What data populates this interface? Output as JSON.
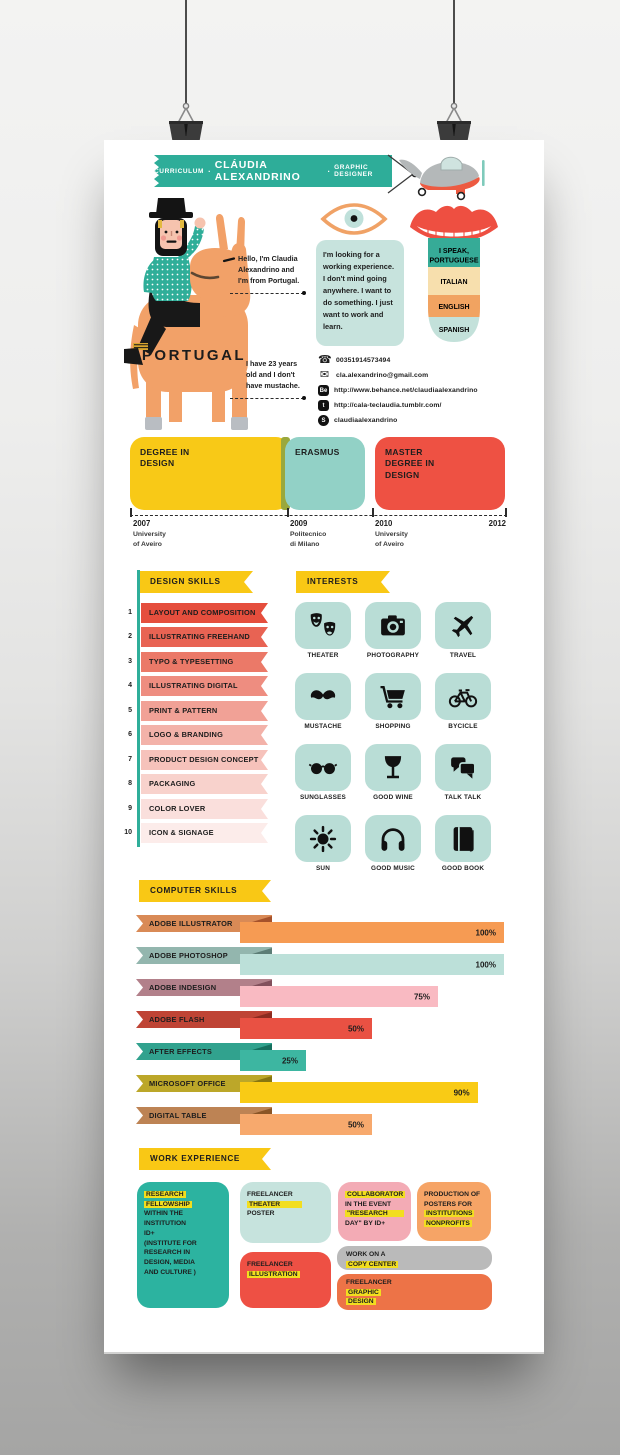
{
  "palette": {
    "wall_top": "#f3f3f2",
    "wall_bottom": "#a5a5a4",
    "poster": "#ffffff",
    "teal": "#2ead99",
    "teal_light": "#c7e3dd",
    "tile_teal": "#b9ddd6",
    "yellow": "#f9c815",
    "highlight_yellow": "#f2de1f",
    "red": "#ee5044",
    "donkey_orange": "#f2a168"
  },
  "banner": {
    "label_left": "CURRICULUM",
    "separator": "·",
    "name": "CLÁUDIA ALEXANDRINO",
    "label_right": "GRAPHIC DESIGNER"
  },
  "intro": {
    "country_label": "PORTUGAL",
    "greeting_note": "Hello, I'm Claudia Alexandrino and I'm from Portugal.",
    "age_note": "I have 23 years old and I don't have mustache.",
    "objective": "I'm looking for a working experience. I don't mind going anywhere. I want to do something. I just want to work and learn."
  },
  "languages": {
    "bands": [
      {
        "lines": [
          "I SPEAK,",
          "PORTUGUESE"
        ],
        "color": "#36ab97"
      },
      {
        "lines": [
          "ITALIAN"
        ],
        "color": "#f7dfad"
      },
      {
        "lines": [
          "ENGLISH"
        ],
        "color": "#f1a361"
      },
      {
        "lines": [
          "SPANISH"
        ],
        "color": "#c3e1da"
      }
    ]
  },
  "contacts": [
    {
      "icon": "phone-icon",
      "glyph": "☎",
      "value": "00351914573494"
    },
    {
      "icon": "email-icon",
      "glyph": "✉",
      "value": "cla.alexandrino@gmail.com"
    },
    {
      "icon": "behance-icon",
      "glyph": "Be",
      "value": "http://www.behance.net/claudiaalexandrino"
    },
    {
      "icon": "tumblr-icon",
      "glyph": "t",
      "value": "http://cala-teclaudia.tumblr.com/"
    },
    {
      "icon": "skype-icon",
      "glyph": "S",
      "value": "claudiaalexandrino"
    }
  ],
  "education_timeline": {
    "blocks": [
      {
        "label": "DEGREE IN DESIGN",
        "color": "#f8c917"
      },
      {
        "label": "ERASMUS",
        "color": "#92d1c6"
      },
      {
        "label": "MASTER DEGREE IN DESIGN",
        "color": "#ee5143"
      }
    ],
    "ticks": [
      {
        "year": "2007",
        "place": "University\nof Aveiro"
      },
      {
        "year": "2009",
        "place": "Politecnico\ndi Milano"
      },
      {
        "year": "2010",
        "place": "University\nof Aveiro"
      },
      {
        "year": "2012",
        "place": ""
      }
    ]
  },
  "design_skills": {
    "title": "DESIGN SKILLS",
    "items": [
      {
        "num": "1",
        "label": "LAYOUT AND COMPOSITION",
        "color": "#e54e3d"
      },
      {
        "num": "2",
        "label": "ILLUSTRATING FREEHAND",
        "color": "#e86353"
      },
      {
        "num": "3",
        "label": "TYPO & TYPESETTING",
        "color": "#eb7968"
      },
      {
        "num": "4",
        "label": "ILLUSTRATING DIGITAL",
        "color": "#ee8d80"
      },
      {
        "num": "5",
        "label": "PRINT & PATTERN",
        "color": "#f1a196"
      },
      {
        "num": "6",
        "label": "LOGO & BRANDING",
        "color": "#f3b2a9"
      },
      {
        "num": "7",
        "label": "PRODUCT DESIGN CONCEPT",
        "color": "#f6c2bb"
      },
      {
        "num": "8",
        "label": "PACKAGING",
        "color": "#f8d2cc"
      },
      {
        "num": "9",
        "label": "COLOR LOVER",
        "color": "#fadfdc"
      },
      {
        "num": "10",
        "label": "ICON & SIGNAGE",
        "color": "#fcecea"
      }
    ]
  },
  "interests": {
    "title": "INTERESTS",
    "items": [
      {
        "label": "THEATER",
        "icon": "theater-masks-icon"
      },
      {
        "label": "PHOTOGRAPHY",
        "icon": "camera-icon"
      },
      {
        "label": "TRAVEL",
        "icon": "airplane-icon"
      },
      {
        "label": "MUSTACHE",
        "icon": "mustache-icon"
      },
      {
        "label": "SHOPPING",
        "icon": "shopping-cart-icon"
      },
      {
        "label": "BYCICLE",
        "icon": "bicycle-icon"
      },
      {
        "label": "SUNGLASSES",
        "icon": "sunglasses-icon"
      },
      {
        "label": "GOOD WINE",
        "icon": "wine-glass-icon"
      },
      {
        "label": "TALK TALK",
        "icon": "speech-bubbles-icon"
      },
      {
        "label": "SUN",
        "icon": "sun-icon"
      },
      {
        "label": "GOOD MUSIC",
        "icon": "headphones-icon"
      },
      {
        "label": "GOOD BOOK",
        "icon": "book-icon"
      }
    ]
  },
  "computer_skills": {
    "title": "COMPUTER SKILLS",
    "rows": [
      {
        "label": "ADOBE ILLUSTRATOR",
        "percent": 100,
        "percent_label": "100%",
        "label_color": "#d98a56",
        "fold_color": "#a6522b",
        "bar_color": "#f69b53"
      },
      {
        "label": "ADOBE PHOTOSHOP",
        "percent": 100,
        "percent_label": "100%",
        "label_color": "#93b6ae",
        "fold_color": "#5c7d76",
        "bar_color": "#bce0d9"
      },
      {
        "label": "ADOBE INDESIGN",
        "percent": 75,
        "percent_label": "75%",
        "label_color": "#b2808a",
        "fold_color": "#82505c",
        "bar_color": "#f9bac2"
      },
      {
        "label": "ADOBE FLASH",
        "percent": 50,
        "percent_label": "50%",
        "label_color": "#bf4435",
        "fold_color": "#8c2b20",
        "bar_color": "#e95143"
      },
      {
        "label": "AFTER EFFECTS",
        "percent": 25,
        "percent_label": "25%",
        "label_color": "#31a28e",
        "fold_color": "#156f5e",
        "bar_color": "#3db6a1"
      },
      {
        "label": "MICROSOFT OFFICE",
        "percent": 90,
        "percent_label": "90%",
        "label_color": "#bca729",
        "fold_color": "#877610",
        "bar_color": "#f9cb15"
      },
      {
        "label": "DIGITAL TABLE",
        "percent": 50,
        "percent_label": "50%",
        "label_color": "#bd8354",
        "fold_color": "#8a5526",
        "bar_color": "#f7a96d"
      }
    ]
  },
  "chart_data": {
    "type": "bar",
    "orientation": "horizontal",
    "title": "COMPUTER SKILLS",
    "categories": [
      "ADOBE ILLUSTRATOR",
      "ADOBE PHOTOSHOP",
      "ADOBE INDESIGN",
      "ADOBE FLASH",
      "AFTER EFFECTS",
      "MICROSOFT OFFICE",
      "DIGITAL TABLE"
    ],
    "values": [
      100,
      100,
      75,
      50,
      25,
      90,
      50
    ],
    "data_labels": [
      "100%",
      "100%",
      "75%",
      "50%",
      "25%",
      "90%",
      "50%"
    ],
    "unit": "%",
    "xlim": [
      0,
      100
    ],
    "grid": false,
    "legend": "none"
  },
  "work_experience": {
    "title": "WORK EXPERIENCE",
    "blocks": [
      {
        "name": "research-fellowship",
        "color": "#2cb3a0",
        "lines": [
          {
            "t": "RESEARCH",
            "hl": true
          },
          {
            "t": "FELLOWSHIP",
            "hl": true
          },
          {
            "t": "WITHIN THE"
          },
          {
            "t": "INSTITUTION"
          },
          {
            "t": "ID+"
          },
          {
            "t": "(INSTITUTE FOR"
          },
          {
            "t": "RESEARCH IN"
          },
          {
            "t": "DESIGN, MEDIA"
          },
          {
            "t": "AND CULTURE )"
          }
        ]
      },
      {
        "name": "freelancer-theater-poster",
        "color": "#c6e3dd",
        "lines": [
          {
            "t": "FREELANCER"
          },
          {
            "t": "THEATER",
            "hl": true,
            "ext": 22
          },
          {
            "t": "POSTER"
          }
        ]
      },
      {
        "name": "freelancer-illustration",
        "color": "#ee5044",
        "lines": [
          {
            "t": "FREELANCER"
          },
          {
            "t": "ILLUSTRATION",
            "hl": true
          }
        ]
      },
      {
        "name": "collaborator-research-day",
        "color": "#f3abb5",
        "lines": [
          {
            "t": "COLLABORATOR",
            "hl": true
          },
          {
            "t": "IN THE EVENT"
          },
          {
            "t": "\"RESEARCH",
            "hl": true,
            "ext": 16
          },
          {
            "t": "DAY\" BY ID+"
          }
        ]
      },
      {
        "name": "production-of-posters",
        "color": "#f6a466",
        "lines": [
          {
            "t": "PRODUCTION OF"
          },
          {
            "t": "POSTERS FOR"
          },
          {
            "t": "INSTITUTIONS",
            "hl": true
          },
          {
            "t": "NONPROFITS",
            "hl": true
          }
        ]
      },
      {
        "name": "work-on-copy-center",
        "color": "#bababa",
        "lines": [
          {
            "t": "WORK ON A"
          },
          {
            "t": "COPY CENTER",
            "hl": true
          }
        ]
      },
      {
        "name": "freelancer-graphic-design",
        "color": "#ed7347",
        "lines": [
          {
            "t": "FREELANCER"
          },
          {
            "t": "GRAPHIC",
            "hl": true
          },
          {
            "t": "DESIGN",
            "hl": true
          }
        ]
      }
    ]
  }
}
